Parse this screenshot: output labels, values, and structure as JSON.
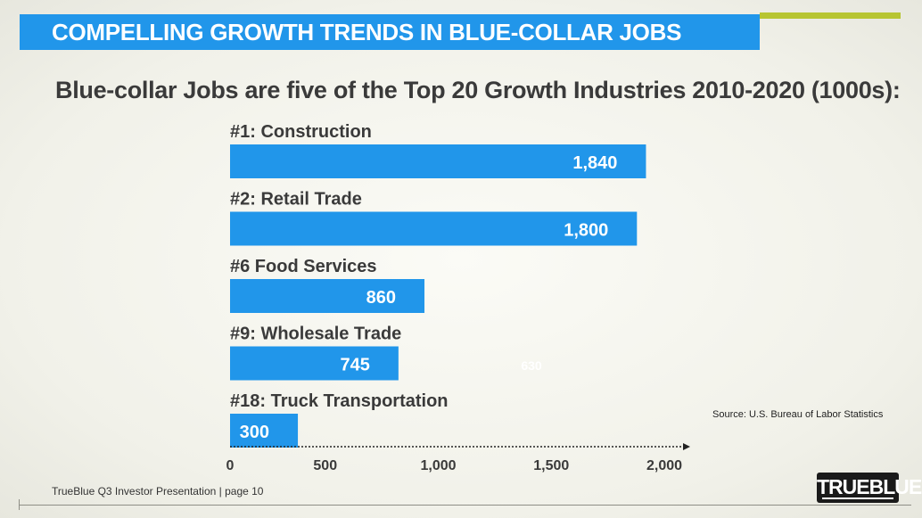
{
  "header": {
    "title": "COMPELLING GROWTH TRENDS IN BLUE-COLLAR JOBS"
  },
  "colors": {
    "bar": "#2196ea",
    "accent": "#b7c532",
    "label": "#3a3a3a"
  },
  "chart_data": {
    "type": "bar",
    "orientation": "horizontal",
    "title": "Blue-collar Jobs are five of the Top 20 Growth Industries 2010-2020 (1000s):",
    "categories": [
      "#1: Construction",
      "#2: Retail Trade",
      "#6 Food Services",
      "#9: Wholesale Trade",
      "#18: Truck Transportation"
    ],
    "values": [
      1840,
      1800,
      860,
      745,
      300
    ],
    "value_labels": [
      "1,840",
      "1,800",
      "860",
      "745",
      "300"
    ],
    "xlim": [
      0,
      2000
    ],
    "xticks": [
      0,
      500,
      1000,
      1500,
      2000
    ],
    "xtick_labels": [
      "0",
      "500",
      "1,000",
      "1,500",
      "2,000"
    ],
    "stray_label": "630",
    "source": "Source: U.S. Bureau of Labor Statistics"
  },
  "footer": {
    "text": "TrueBlue Q3 Investor Presentation | page 10"
  },
  "logo": {
    "text": "TRUEBLUE"
  }
}
